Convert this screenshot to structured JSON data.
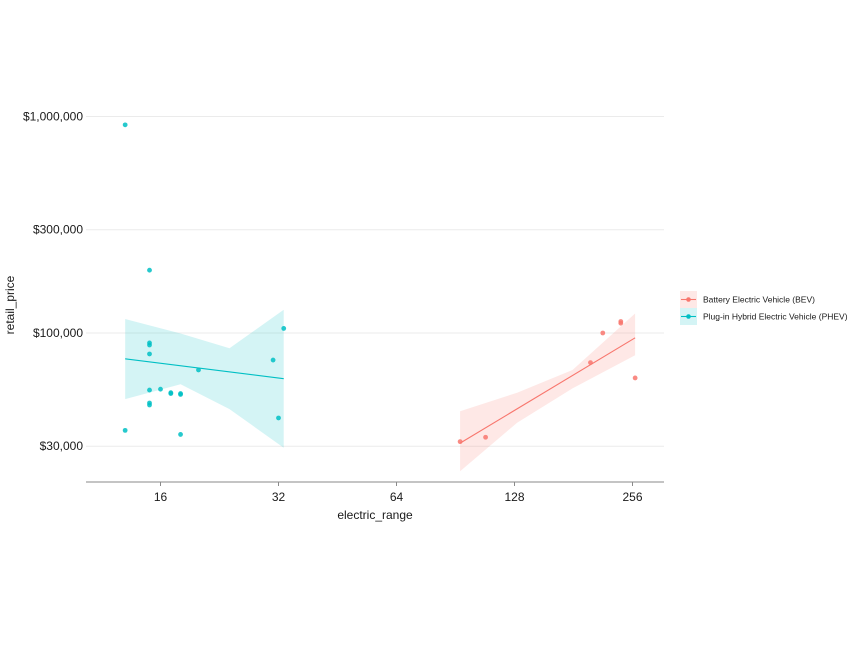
{
  "chart_data": {
    "type": "scatter",
    "title": "",
    "xlabel": "electric_range",
    "ylabel": "retail_price",
    "x_scale": "log2",
    "y_scale": "log10",
    "xlim": [
      12,
      280
    ],
    "ylim": [
      22000,
      1150000
    ],
    "x_ticks": [
      16,
      32,
      64,
      128,
      256
    ],
    "x_tick_labels": [
      "16",
      "32",
      "64",
      "128",
      "256"
    ],
    "y_ticks": [
      30000,
      100000,
      300000,
      1000000
    ],
    "y_tick_labels": [
      "$30,000",
      "$100,000",
      "$300,000",
      "$1,000,000"
    ],
    "grid": "horizontal-major",
    "legend_position": "right",
    "series": [
      {
        "name": "Battery Electric Vehicle (BEV)",
        "color": "#F8766D",
        "points": [
          [
            93,
            31500
          ],
          [
            108,
            33000
          ],
          [
            200,
            73000
          ],
          [
            215,
            100000
          ],
          [
            239,
            111000
          ],
          [
            239,
            113000
          ],
          [
            260,
            62000
          ]
        ],
        "fit": [
          [
            93,
            31000
          ],
          [
            260,
            95000
          ]
        ],
        "band": {
          "x": [
            93,
            130,
            180,
            260
          ],
          "lower": [
            23000,
            38500,
            55500,
            79000
          ],
          "upper": [
            43500,
            53000,
            67500,
            123000
          ]
        }
      },
      {
        "name": "Plug-in Hybrid Electric Vehicle (PHEV)",
        "color": "#00BFC4",
        "points": [
          [
            13,
            35500
          ],
          [
            13,
            915000
          ],
          [
            15,
            195000
          ],
          [
            15,
            90000
          ],
          [
            15,
            88000
          ],
          [
            15,
            80000
          ],
          [
            15,
            54500
          ],
          [
            15,
            47500
          ],
          [
            15,
            46500
          ],
          [
            16,
            55000
          ],
          [
            17,
            53000
          ],
          [
            17,
            52500
          ],
          [
            18,
            52000
          ],
          [
            18,
            52500
          ],
          [
            18,
            34000
          ],
          [
            20,
            67500
          ],
          [
            31,
            75000
          ],
          [
            32,
            40500
          ],
          [
            33,
            105000
          ]
        ],
        "fit": [
          [
            13,
            76000
          ],
          [
            33,
            61500
          ]
        ],
        "band": {
          "x": [
            13,
            18,
            24,
            33
          ],
          "lower": [
            49500,
            58000,
            44500,
            29500
          ],
          "upper": [
            116000,
            99500,
            85000,
            128000
          ]
        }
      }
    ]
  }
}
